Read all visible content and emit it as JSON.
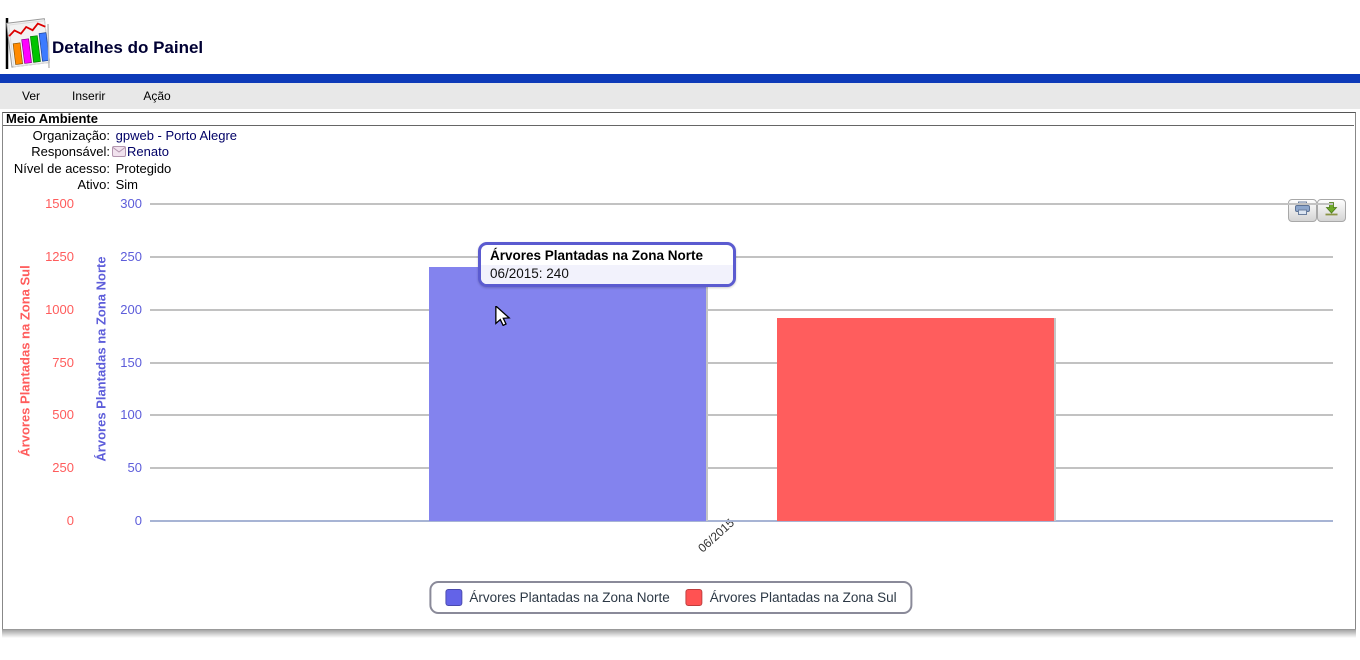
{
  "header": {
    "title": "Detalhes do Painel",
    "logo_icon": "bar-chart-logo-icon"
  },
  "menu": {
    "items": [
      {
        "label": "Ver"
      },
      {
        "label": "Inserir"
      },
      {
        "label": "Ação"
      }
    ]
  },
  "panel": {
    "title": "Meio Ambiente",
    "fields": [
      {
        "label": "Organização:",
        "value": "gpweb - Porto Alegre",
        "link": true
      },
      {
        "label": "Responsável:",
        "value": "Renato",
        "link": true,
        "icon": "envelope-icon"
      },
      {
        "label": "Nível de acesso:",
        "value": "Protegido",
        "link": false
      },
      {
        "label": "Ativo:",
        "value": "Sim",
        "link": false
      }
    ]
  },
  "toolbar_icons": {
    "print": "printer-icon",
    "download": "download-icon"
  },
  "chart_data": {
    "type": "bar",
    "categories": [
      "06/2015"
    ],
    "series": [
      {
        "name": "Árvores Plantadas na Zona Norte",
        "axis": "norte",
        "values": [
          240
        ],
        "bar_color": "#8383ee",
        "legend_color": "#6363e8"
      },
      {
        "name": "Árvores Plantadas na Zona Sul",
        "axis": "sul",
        "values": [
          960
        ],
        "bar_color": "#ff5d5d",
        "legend_color": "#ff5252"
      }
    ],
    "axes": {
      "sul": {
        "label": "Árvores Plantadas na Zona Sul",
        "color": "#ff5c5c",
        "ticks": [
          0,
          250,
          500,
          750,
          1000,
          1250,
          1500
        ],
        "range": [
          0,
          1500
        ]
      },
      "norte": {
        "label": "Árvores Plantadas na Zona Norte",
        "color": "#5d5dda",
        "ticks": [
          0,
          50,
          100,
          150,
          200,
          250,
          300
        ],
        "range": [
          0,
          300
        ]
      }
    },
    "grid": true,
    "legend_position": "bottom",
    "tooltip": {
      "title": "Árvores Plantadas na Zona Norte",
      "text": "06/2015: 240"
    }
  }
}
